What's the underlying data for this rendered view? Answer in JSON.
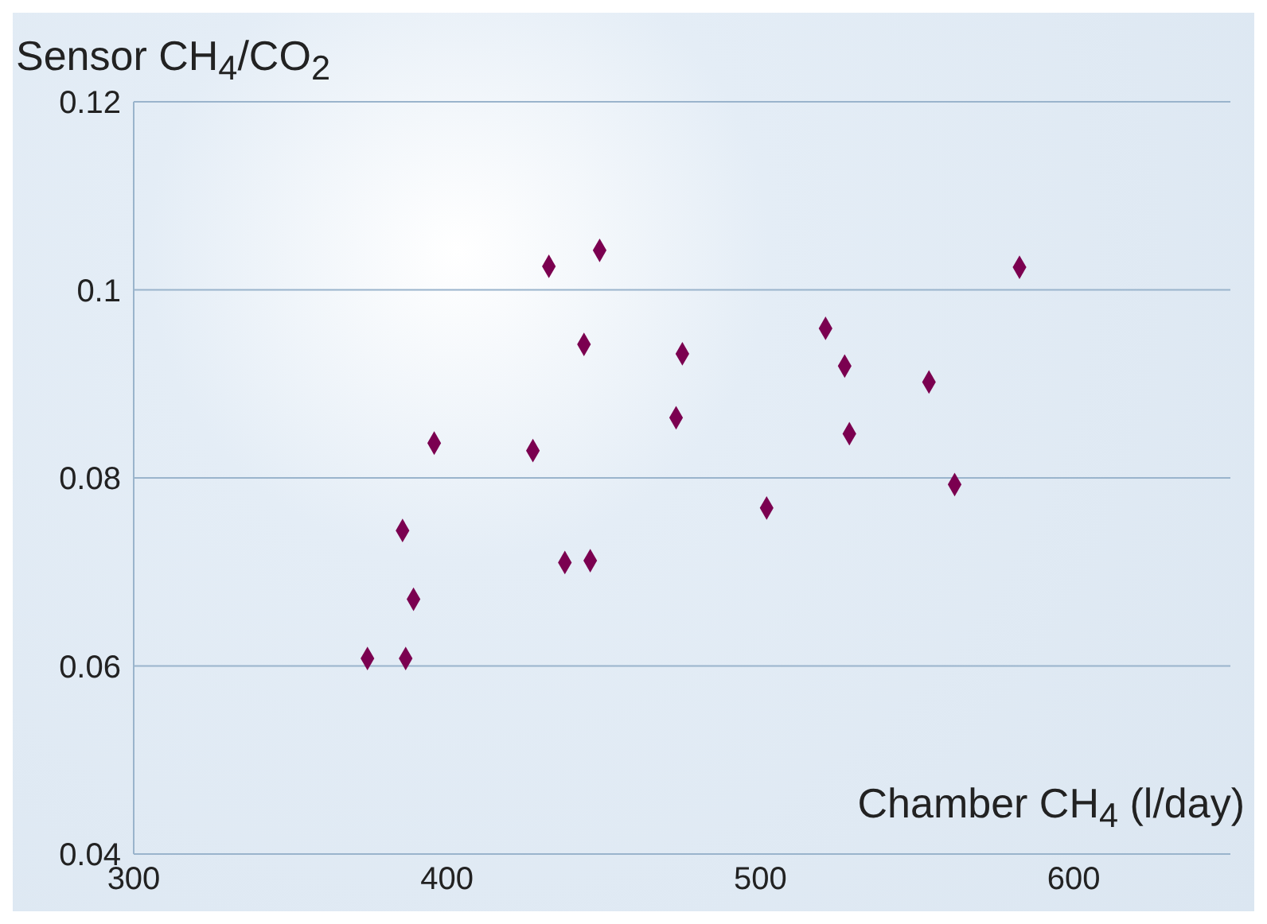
{
  "chart_data": {
    "type": "scatter",
    "ylabel": "Sensor CH$_{4}$/CO$_{2}$",
    "xlabel": "Chamber CH$_{4}$ (l/day)",
    "xlim": [
      300,
      650
    ],
    "xticks": [
      300,
      400,
      500,
      600
    ],
    "ylim": [
      0.04,
      0.12
    ],
    "yticks": [
      0.04,
      {
        "value": 0.06,
        "label": "0.06"
      },
      {
        "value": 0.08,
        "label": "0.08"
      },
      {
        "value": 0.1,
        "label": "0.1"
      },
      0.12
    ],
    "grid": "y",
    "marker": "diamond",
    "series": [
      {
        "color": "#7b0050",
        "x": [
          374.6,
          386.8,
          385.8,
          389.3,
          395.9,
          427.4,
          432.5,
          437.6,
          443.7,
          445.7,
          448.7,
          473.1,
          475.1,
          502,
          520.8,
          526.9,
          528.4,
          553.8,
          562,
          582.7
        ],
        "values": [
          0.0608,
          0.0608,
          0.0744,
          0.0671,
          0.0837,
          0.0829,
          0.1025,
          0.071,
          0.0942,
          0.0712,
          0.1042,
          0.0864,
          0.0932,
          0.0768,
          0.0959,
          0.0919,
          0.0847,
          0.0902,
          0.0793,
          0.1024
        ]
      }
    ]
  }
}
